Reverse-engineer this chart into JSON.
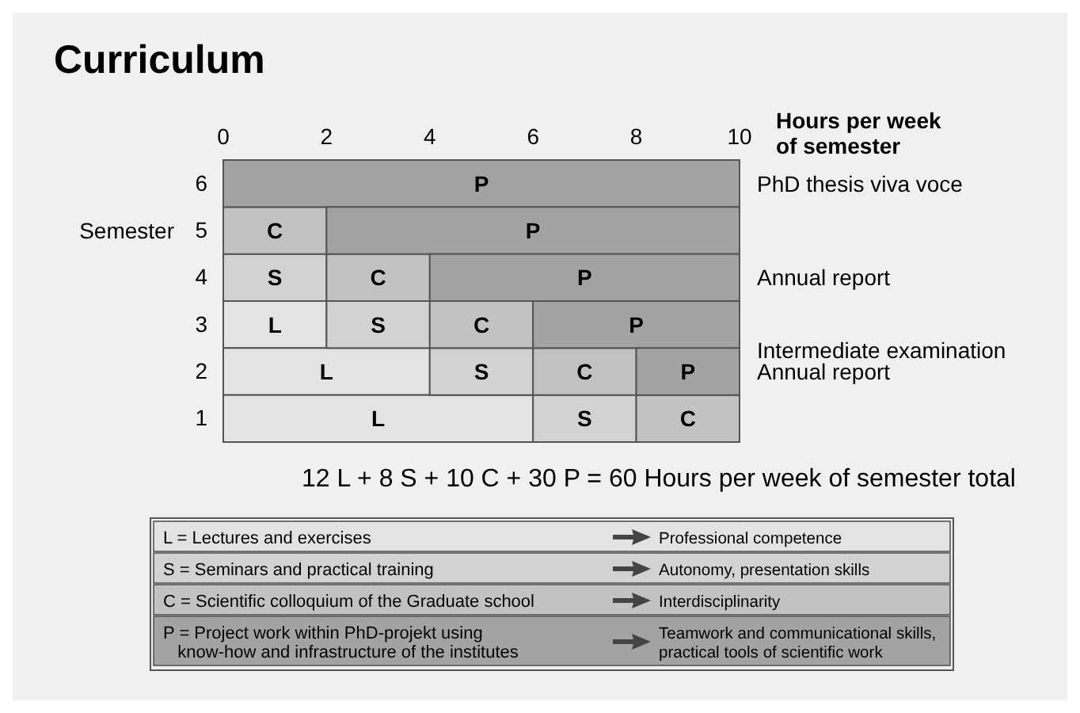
{
  "chart_data": {
    "type": "bar",
    "orientation": "horizontal",
    "stacked": true,
    "title": "Curriculum",
    "xlabel": "Hours per week\nof semester",
    "ylabel": "Semester",
    "categories": [
      "6",
      "5",
      "4",
      "3",
      "2",
      "1"
    ],
    "series": [
      {
        "name": "L",
        "color": "#e3e3e3",
        "values": [
          0,
          0,
          0,
          2,
          4,
          6
        ]
      },
      {
        "name": "S",
        "color": "#d2d2d2",
        "values": [
          0,
          0,
          2,
          2,
          2,
          2
        ]
      },
      {
        "name": "C",
        "color": "#c2c2c2",
        "values": [
          0,
          2,
          2,
          2,
          2,
          2
        ]
      },
      {
        "name": "P",
        "color": "#a3a3a3",
        "values": [
          10,
          8,
          6,
          4,
          2,
          0
        ]
      }
    ],
    "xlim": [
      0,
      10
    ],
    "xticks": [
      0,
      2,
      4,
      6,
      8,
      10
    ],
    "annotations": [
      "PhD thesis viva voce",
      "Annual report",
      "Intermediate examination",
      "Annual report",
      "12 L + 8 S + 10 C + 30 P  = 60 Hours per week of semester total",
      "L = Lectures and exercises",
      "Professional competence",
      "S = Seminars and practical training",
      "Autonomy, presentation skills",
      "C = Scientific colloquium of the Graduate school",
      "Interdisciplinarity",
      "P = Project work within PhD-projekt using\n   know-how and infrastructure of the institutes",
      "Teamwork and communicational skills,\npractical tools of scientific work"
    ]
  }
}
